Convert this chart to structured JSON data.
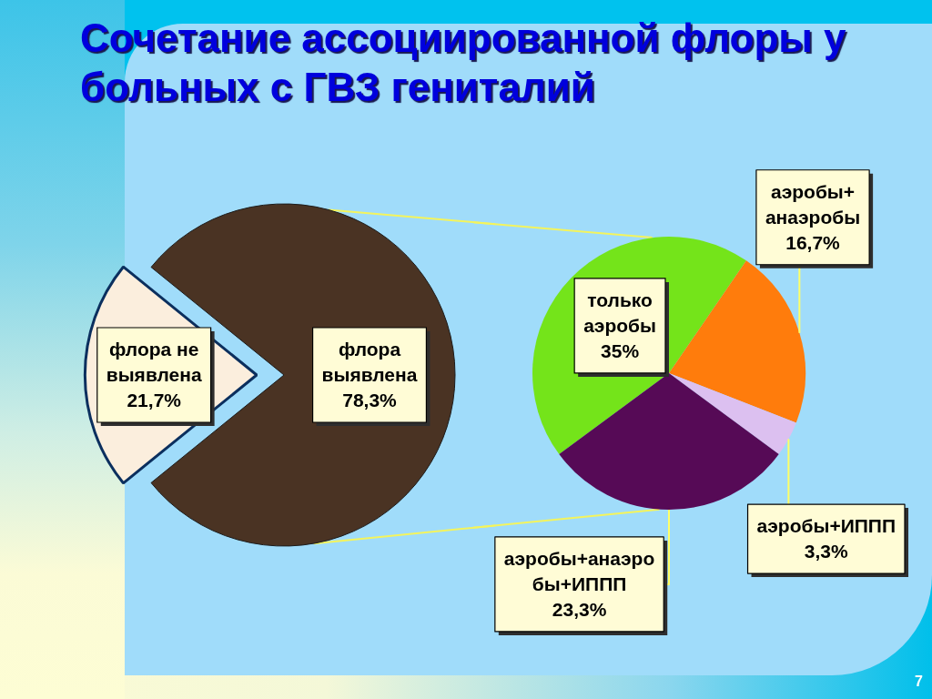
{
  "chart_data": [
    {
      "type": "pie",
      "title": "Сочетание ассоциированной флоры у больных с ГВЗ гениталий",
      "categories": [
        "флора не выявлена",
        "флора выявлена"
      ],
      "values": [
        21.7,
        78.3
      ],
      "colors": [
        "#fbeedd",
        "#4a3323"
      ],
      "value_labels": [
        "21,7%",
        "78,3%"
      ]
    },
    {
      "type": "pie",
      "categories": [
        "только аэробы",
        "аэробы+анаэробы",
        "аэробы+ИППП",
        "аэробы+анаэробы+ИППП"
      ],
      "values": [
        35,
        16.7,
        3.3,
        23.3
      ],
      "colors": [
        "#74e41a",
        "#ff7c0c",
        "#dcc0f0",
        "#560a56"
      ],
      "value_labels": [
        "35%",
        "16,7%",
        "3,3%",
        "23,3%"
      ],
      "annotations": [
        "7"
      ]
    }
  ]
}
